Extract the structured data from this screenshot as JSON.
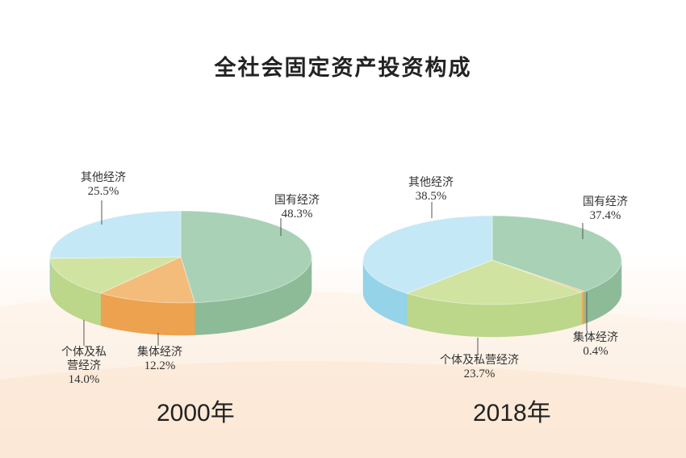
{
  "title": "全社会固定资产投资构成",
  "colors": {
    "state": "#a9d1b6",
    "state_side": "#8dbb98",
    "collective": "#f4bc7a",
    "collective_side": "#eca24f",
    "individual": "#d1e3a1",
    "individual_side": "#bcd68a",
    "other": "#c5e8f6",
    "other_side": "#94d3e8"
  },
  "chart_data": [
    {
      "type": "pie",
      "label": "2000年",
      "slices": [
        {
          "key": "state",
          "name": "国有经济",
          "value": 48.3,
          "value_label": "48.3%"
        },
        {
          "key": "collective",
          "name": "集体经济",
          "value": 12.2,
          "value_label": "12.2%"
        },
        {
          "key": "individual",
          "name": "个体及私营经济",
          "name_lines": [
            "个体及私",
            "营经济"
          ],
          "value": 14.0,
          "value_label": "14.0%"
        },
        {
          "key": "other",
          "name": "其他经济",
          "value": 25.5,
          "value_label": "25.5%"
        }
      ]
    },
    {
      "type": "pie",
      "label": "2018年",
      "slices": [
        {
          "key": "state",
          "name": "国有经济",
          "value": 37.4,
          "value_label": "37.4%"
        },
        {
          "key": "collective",
          "name": "集体经济",
          "value": 0.4,
          "value_label": "0.4%"
        },
        {
          "key": "individual",
          "name": "个体及私营经济",
          "value": 23.7,
          "value_label": "23.7%"
        },
        {
          "key": "other",
          "name": "其他经济",
          "value": 38.5,
          "value_label": "38.5%"
        }
      ]
    }
  ]
}
